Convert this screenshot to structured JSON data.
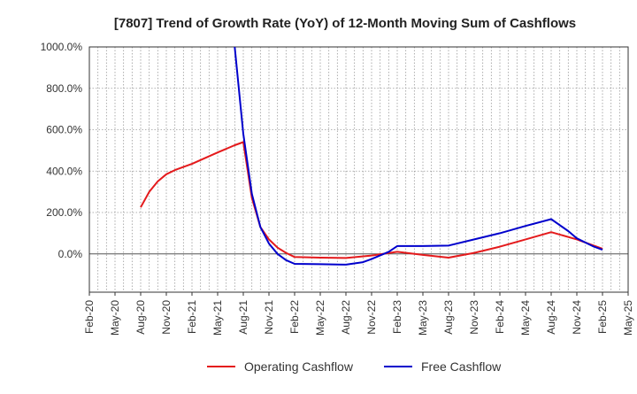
{
  "chart_data": {
    "type": "line",
    "title": "[7807]  Trend of Growth Rate (YoY) of 12-Month Moving Sum of Cashflows",
    "xlabel": "",
    "ylabel": "",
    "x_ticks": [
      "Feb-20",
      "May-20",
      "Aug-20",
      "Nov-20",
      "Feb-21",
      "May-21",
      "Aug-21",
      "Nov-21",
      "Feb-22",
      "May-22",
      "Aug-22",
      "Nov-22",
      "Feb-23",
      "May-23",
      "Aug-23",
      "Nov-23",
      "Feb-24",
      "May-24",
      "Aug-24",
      "Nov-24",
      "Feb-25",
      "May-25"
    ],
    "y_ticks": [
      "1000.0%",
      "800.0%",
      "600.0%",
      "400.0%",
      "200.0%",
      "0.0%"
    ],
    "ylim": [
      -185,
      1000
    ],
    "grid": true,
    "legend_position": "bottom",
    "series": [
      {
        "name": "Operating Cashflow",
        "color": "#e41a1c",
        "points": [
          [
            "Aug-20",
            225
          ],
          [
            "Sep-20",
            300
          ],
          [
            "Oct-20",
            350
          ],
          [
            "Nov-20",
            385
          ],
          [
            "Dec-20",
            405
          ],
          [
            "Jan-21",
            420
          ],
          [
            "Feb-21",
            435
          ],
          [
            "May-21",
            490
          ],
          [
            "Jul-21",
            525
          ],
          [
            "Aug-21",
            540
          ],
          [
            "Sep-21",
            270
          ],
          [
            "Oct-21",
            130
          ],
          [
            "Nov-21",
            70
          ],
          [
            "Dec-21",
            30
          ],
          [
            "Jan-22",
            5
          ],
          [
            "Feb-22",
            -15
          ],
          [
            "May-22",
            -18
          ],
          [
            "Aug-22",
            -20
          ],
          [
            "Nov-22",
            -8
          ],
          [
            "Feb-23",
            10
          ],
          [
            "May-23",
            -5
          ],
          [
            "Aug-23",
            -18
          ],
          [
            "Nov-23",
            5
          ],
          [
            "Feb-24",
            35
          ],
          [
            "May-24",
            70
          ],
          [
            "Aug-24",
            105
          ],
          [
            "Nov-24",
            70
          ],
          [
            "Feb-25",
            25
          ]
        ]
      },
      {
        "name": "Free Cashflow",
        "color": "#0000cc",
        "points": [
          [
            "Jul-21",
            1000
          ],
          [
            "Aug-21",
            580
          ],
          [
            "Sep-21",
            290
          ],
          [
            "Oct-21",
            130
          ],
          [
            "Nov-21",
            50
          ],
          [
            "Dec-21",
            0
          ],
          [
            "Jan-22",
            -30
          ],
          [
            "Feb-22",
            -48
          ],
          [
            "May-22",
            -50
          ],
          [
            "Aug-22",
            -52
          ],
          [
            "Oct-22",
            -40
          ],
          [
            "Nov-22",
            -25
          ],
          [
            "Jan-23",
            10
          ],
          [
            "Feb-23",
            38
          ],
          [
            "May-23",
            38
          ],
          [
            "Aug-23",
            40
          ],
          [
            "Nov-23",
            70
          ],
          [
            "Feb-24",
            100
          ],
          [
            "May-24",
            135
          ],
          [
            "Aug-24",
            168
          ],
          [
            "Oct-24",
            110
          ],
          [
            "Nov-24",
            75
          ],
          [
            "Jan-25",
            35
          ],
          [
            "Feb-25",
            20
          ]
        ]
      }
    ]
  }
}
